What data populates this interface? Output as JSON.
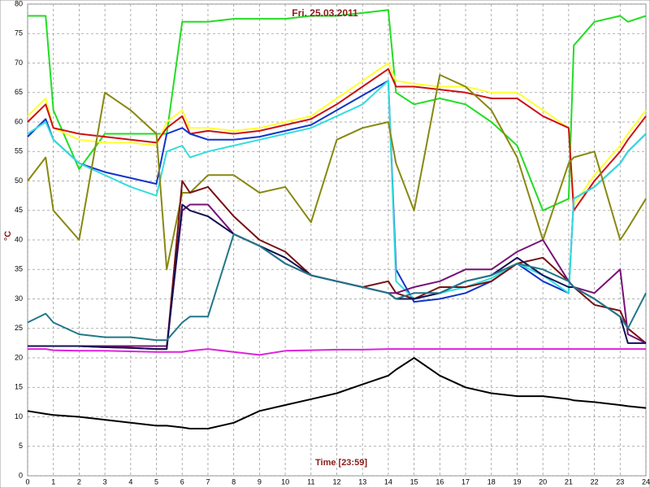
{
  "chart_data": {
    "type": "line",
    "title": "Fri. 25.03.2011",
    "x_label": "Time [23:59]",
    "y_label": "°C",
    "x": [
      0,
      0.7,
      1,
      2,
      3,
      4,
      5,
      5.4,
      6,
      6.3,
      7,
      8,
      9,
      10,
      11,
      12,
      13,
      14,
      14.3,
      15,
      16,
      17,
      18,
      19,
      20,
      21,
      21.2,
      22,
      23,
      23.3,
      24
    ],
    "xlim": [
      0,
      24
    ],
    "ylim": [
      0,
      80
    ],
    "xticks": [
      0,
      1,
      2,
      3,
      4,
      5,
      6,
      7,
      8,
      9,
      10,
      11,
      12,
      13,
      14,
      15,
      16,
      17,
      18,
      19,
      20,
      21,
      22,
      23,
      24
    ],
    "yticks": [
      0,
      5,
      10,
      15,
      20,
      25,
      30,
      35,
      40,
      45,
      50,
      55,
      60,
      65,
      70,
      75,
      80
    ],
    "grid": true,
    "series": [
      {
        "color": "#22dd22",
        "values": [
          78,
          78,
          62,
          52,
          58,
          58,
          58,
          58,
          77,
          77,
          77,
          77.5,
          77.5,
          77.5,
          78,
          78,
          78.5,
          79,
          65,
          63,
          64,
          63,
          60,
          56,
          45,
          47,
          73,
          77,
          78,
          77,
          78
        ]
      },
      {
        "color": "#ffff33",
        "values": [
          61,
          64,
          59,
          57,
          56.5,
          56.5,
          56,
          60,
          62,
          59,
          59,
          58.5,
          59,
          60,
          61,
          64,
          67,
          70,
          67,
          66.5,
          66,
          66,
          65,
          65,
          62,
          59,
          46,
          51,
          56,
          58,
          62
        ]
      },
      {
        "color": "#cc1111",
        "values": [
          60,
          63,
          59,
          58,
          57.5,
          57,
          56.5,
          59,
          61,
          58,
          58.5,
          58,
          58.5,
          59.5,
          60.5,
          63,
          66,
          69,
          66,
          66,
          65.5,
          65,
          64,
          64,
          61,
          59,
          45,
          50,
          55,
          57,
          61
        ]
      },
      {
        "color": "#1133cc",
        "values": [
          57.5,
          60.5,
          57,
          53,
          51.5,
          50.5,
          49.5,
          58,
          59,
          58,
          57,
          57,
          57.5,
          58.5,
          59.5,
          62,
          64.5,
          67,
          35,
          29.5,
          30,
          31,
          33,
          36,
          33,
          31,
          47,
          49,
          53,
          55,
          58
        ]
      },
      {
        "color": "#33dddd",
        "values": [
          58,
          60,
          57,
          53,
          51,
          49,
          47.5,
          55,
          56,
          54,
          55,
          56,
          57,
          58,
          59,
          61,
          63,
          67,
          33,
          30,
          31,
          32,
          33.5,
          36,
          34,
          31,
          47,
          49,
          53,
          55,
          58
        ]
      },
      {
        "color": "#888811",
        "values": [
          50,
          54,
          45,
          40,
          65,
          62,
          58,
          35,
          48,
          48,
          51,
          51,
          48,
          49,
          43,
          57,
          59,
          60,
          53,
          45,
          68,
          66,
          62,
          54,
          40,
          53,
          54,
          55,
          40,
          42,
          47
        ]
      },
      {
        "color": "#771111",
        "values": [
          22,
          22,
          22,
          22,
          21.8,
          21.7,
          21.5,
          21.5,
          50,
          48,
          49,
          44,
          40,
          38,
          34,
          33,
          32,
          33,
          31,
          30,
          32,
          32,
          33,
          36,
          37,
          33,
          32,
          29,
          28,
          25,
          22.5
        ]
      },
      {
        "color": "#771177",
        "values": [
          22,
          22,
          22,
          22,
          22,
          22,
          22,
          22,
          45,
          46,
          46,
          41,
          39,
          36,
          34,
          33,
          32,
          31,
          31,
          32,
          33,
          35,
          35,
          38,
          40,
          33,
          32,
          31,
          35,
          24,
          22.5
        ]
      },
      {
        "color": "#111155",
        "values": [
          22,
          22,
          22,
          22,
          21.8,
          21.7,
          21.5,
          21.5,
          46,
          45,
          44,
          41,
          39,
          37,
          34,
          33,
          32,
          31,
          30,
          30,
          31,
          33,
          34,
          37,
          34,
          32,
          32,
          30,
          27,
          22.5,
          22.5
        ]
      },
      {
        "color": "#227788",
        "values": [
          26,
          27.5,
          26,
          24,
          23.5,
          23.5,
          23,
          23,
          26,
          27,
          27,
          41,
          39,
          36,
          34,
          33,
          32,
          31,
          30,
          31,
          31,
          33,
          34,
          36,
          35,
          33,
          32,
          30,
          27,
          25,
          31
        ]
      },
      {
        "color": "#dd22dd",
        "values": [
          21.5,
          21.5,
          21.3,
          21.2,
          21.2,
          21.1,
          21,
          21,
          21,
          21.2,
          21.5,
          21,
          20.5,
          21.2,
          21.3,
          21.4,
          21.4,
          21.5,
          21.5,
          21.5,
          21.5,
          21.5,
          21.5,
          21.5,
          21.5,
          21.5,
          21.5,
          21.5,
          21.5,
          21.5,
          21.5
        ]
      },
      {
        "color": "#000000",
        "values": [
          11,
          10.5,
          10.3,
          10,
          9.5,
          9,
          8.5,
          8.5,
          8.2,
          8,
          8,
          9,
          11,
          12,
          13,
          14,
          15.5,
          17,
          18,
          20,
          17,
          15,
          14,
          13.5,
          13.5,
          13,
          12.8,
          12.5,
          12,
          11.8,
          11.5
        ]
      }
    ]
  }
}
